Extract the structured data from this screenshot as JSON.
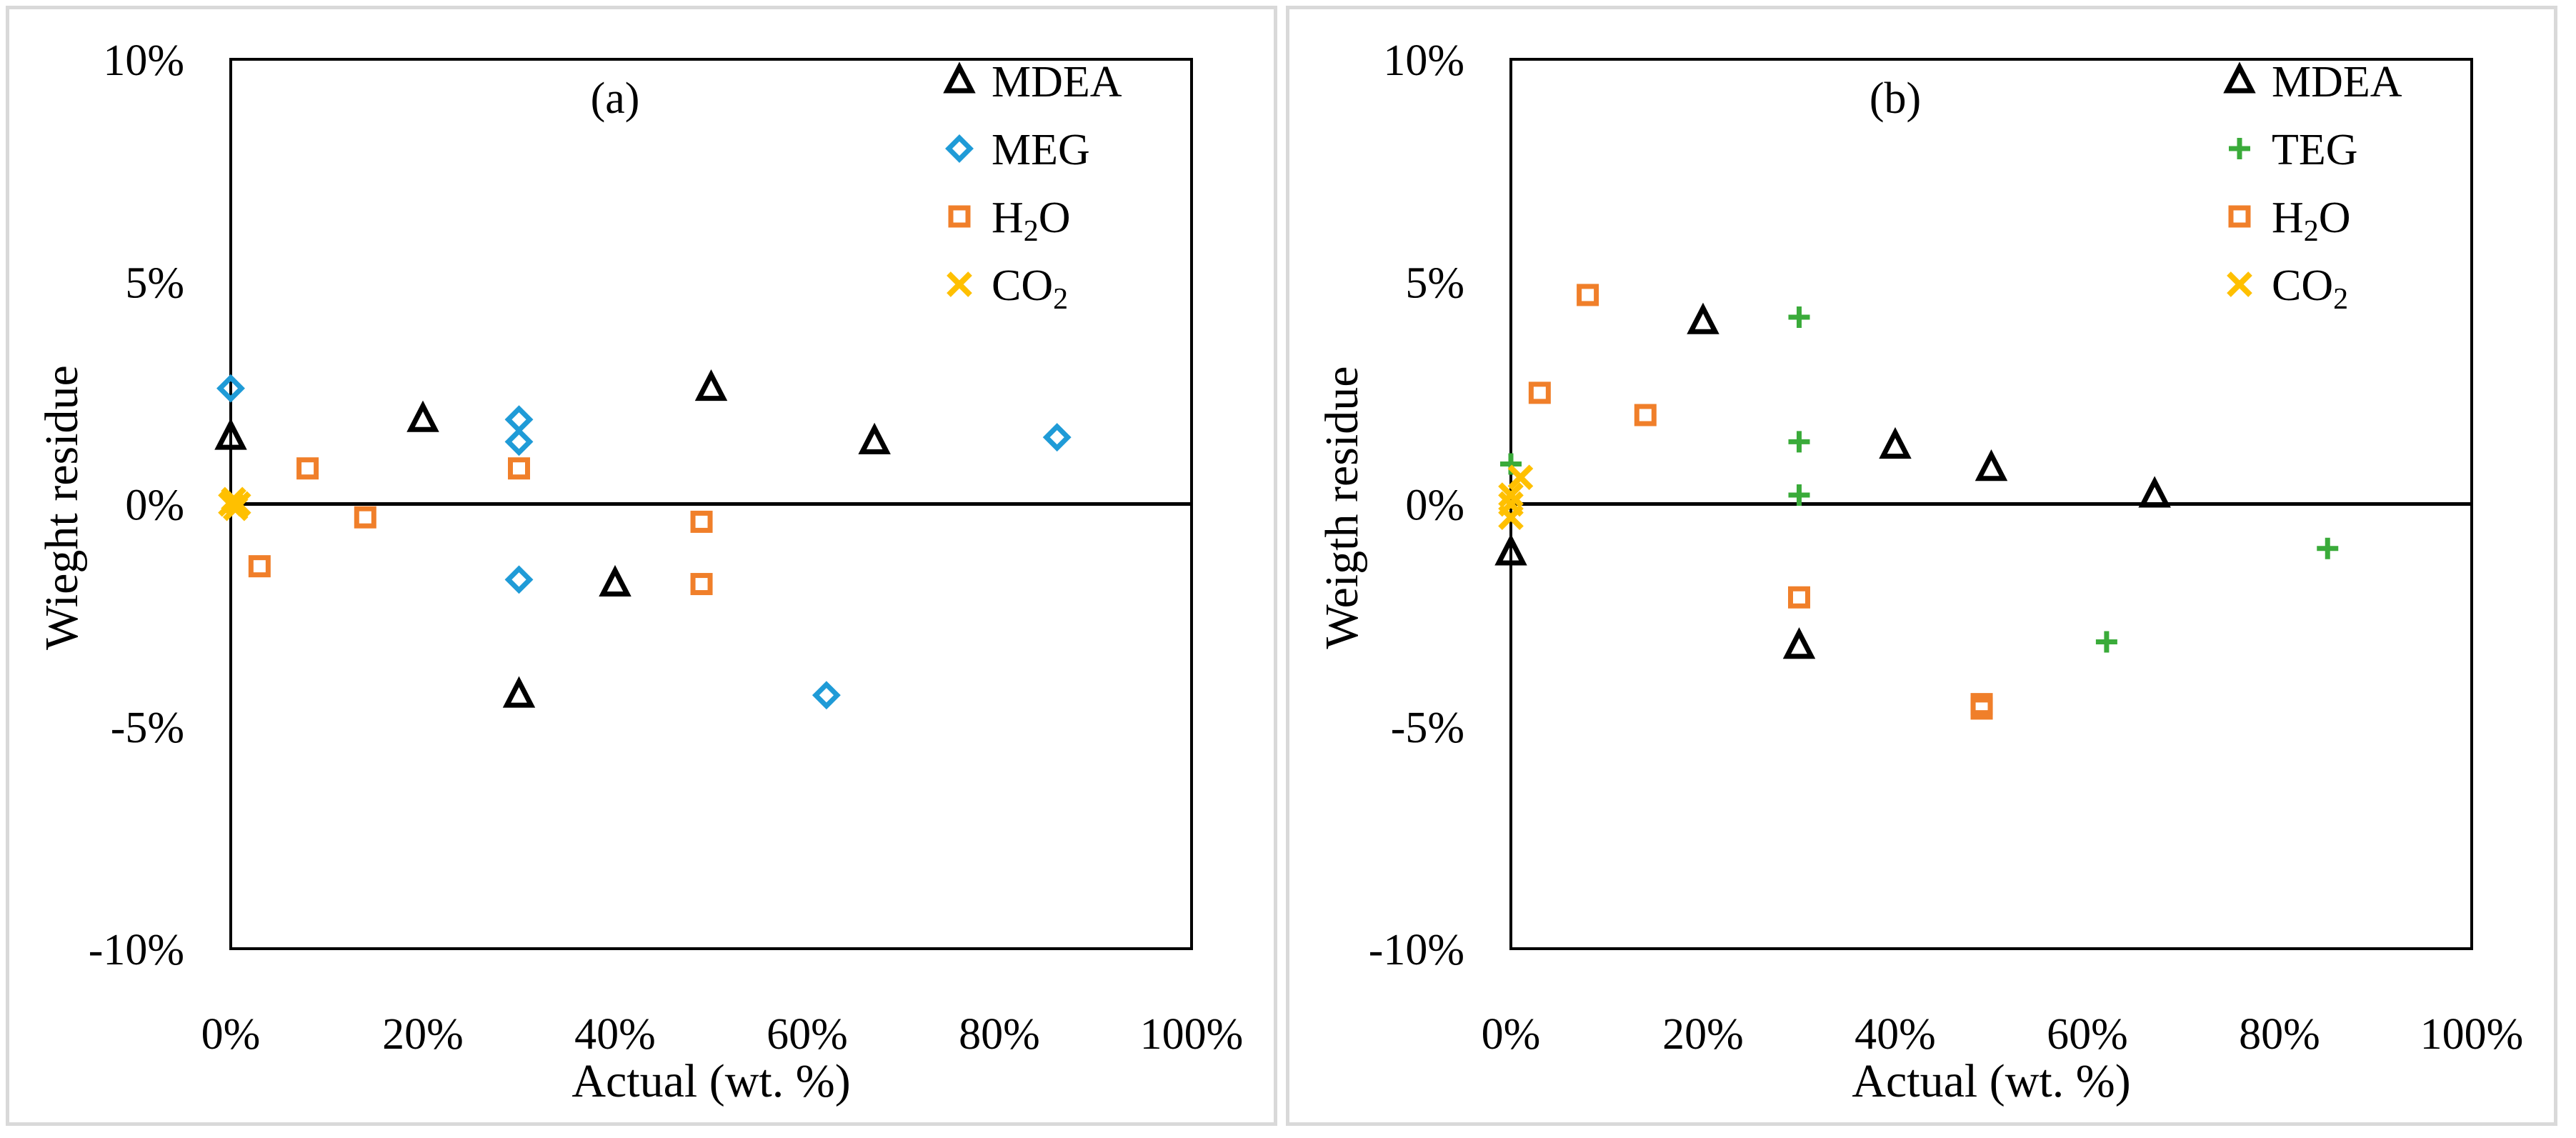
{
  "chart_data": [
    {
      "type": "scatter",
      "panel_label": "(a)",
      "xlabel": "Actual (wt. %)",
      "ylabel": "Wieght residue",
      "xlim": [
        0,
        100
      ],
      "ylim": [
        -10,
        10
      ],
      "x_ticks": [
        "0%",
        "20%",
        "40%",
        "60%",
        "80%",
        "100%"
      ],
      "y_ticks": [
        "10%",
        "5%",
        "0%",
        "-5%",
        "-10%"
      ],
      "legend_position": "top-right",
      "grid": false,
      "series": [
        {
          "name": "MDEA",
          "marker": "triangle",
          "color": "#000000",
          "points": [
            [
              0,
              1.5
            ],
            [
              20,
              1.9
            ],
            [
              30,
              -4.3
            ],
            [
              40,
              -1.8
            ],
            [
              50,
              2.6
            ],
            [
              67,
              1.4
            ]
          ]
        },
        {
          "name": "MEG",
          "marker": "diamond",
          "color": "#1f9bd7",
          "points": [
            [
              0,
              2.6
            ],
            [
              30,
              1.9
            ],
            [
              30,
              1.4
            ],
            [
              30,
              -1.7
            ],
            [
              62,
              -4.3
            ],
            [
              86,
              1.5
            ]
          ]
        },
        {
          "name": "H2O",
          "name_base": "H",
          "name_sub": "2",
          "name_tail": "O",
          "marker": "square",
          "color": "#f07f2a",
          "points": [
            [
              3,
              -1.4
            ],
            [
              8,
              0.8
            ],
            [
              14,
              -0.3
            ],
            [
              30,
              0.8
            ],
            [
              49,
              -0.4
            ],
            [
              49,
              -1.8
            ]
          ]
        },
        {
          "name": "CO2",
          "name_base": "CO",
          "name_sub": "2",
          "name_tail": "",
          "marker": "x",
          "color": "#ffc000",
          "points": [
            [
              0,
              0
            ],
            [
              0.3,
              0.1
            ],
            [
              0.5,
              -0.1
            ],
            [
              0.8,
              0
            ]
          ]
        }
      ]
    },
    {
      "type": "scatter",
      "panel_label": "(b)",
      "xlabel": "Actual (wt. %)",
      "ylabel": "Weigth residue",
      "xlim": [
        0,
        100
      ],
      "ylim": [
        -10,
        10
      ],
      "x_ticks": [
        "0%",
        "20%",
        "40%",
        "60%",
        "80%",
        "100%"
      ],
      "y_ticks": [
        "10%",
        "5%",
        "0%",
        "-5%",
        "-10%"
      ],
      "legend_position": "top-right",
      "grid": false,
      "series": [
        {
          "name": "MDEA",
          "marker": "triangle",
          "color": "#000000",
          "points": [
            [
              0,
              -1.1
            ],
            [
              20,
              4.1
            ],
            [
              30,
              -3.2
            ],
            [
              40,
              1.3
            ],
            [
              50,
              0.8
            ],
            [
              67,
              0.2
            ]
          ]
        },
        {
          "name": "TEG",
          "marker": "plus",
          "color": "#3aab3a",
          "points": [
            [
              0,
              0.9
            ],
            [
              30,
              4.2
            ],
            [
              30,
              1.4
            ],
            [
              30,
              0.2
            ],
            [
              62,
              -3.1
            ],
            [
              85,
              -1.0
            ]
          ]
        },
        {
          "name": "H2O",
          "name_base": "H",
          "name_sub": "2",
          "name_tail": "O",
          "marker": "square",
          "color": "#f07f2a",
          "points": [
            [
              3,
              2.5
            ],
            [
              8,
              4.7
            ],
            [
              14,
              2.0
            ],
            [
              30,
              -2.1
            ],
            [
              49,
              -4.5
            ],
            [
              49,
              -4.6
            ]
          ]
        },
        {
          "name": "CO2",
          "name_base": "CO",
          "name_sub": "2",
          "name_tail": "",
          "marker": "x",
          "color": "#ffc000",
          "points": [
            [
              0,
              0
            ],
            [
              0,
              -0.3
            ],
            [
              0,
              0.2
            ],
            [
              1,
              0.6
            ]
          ]
        }
      ]
    }
  ]
}
